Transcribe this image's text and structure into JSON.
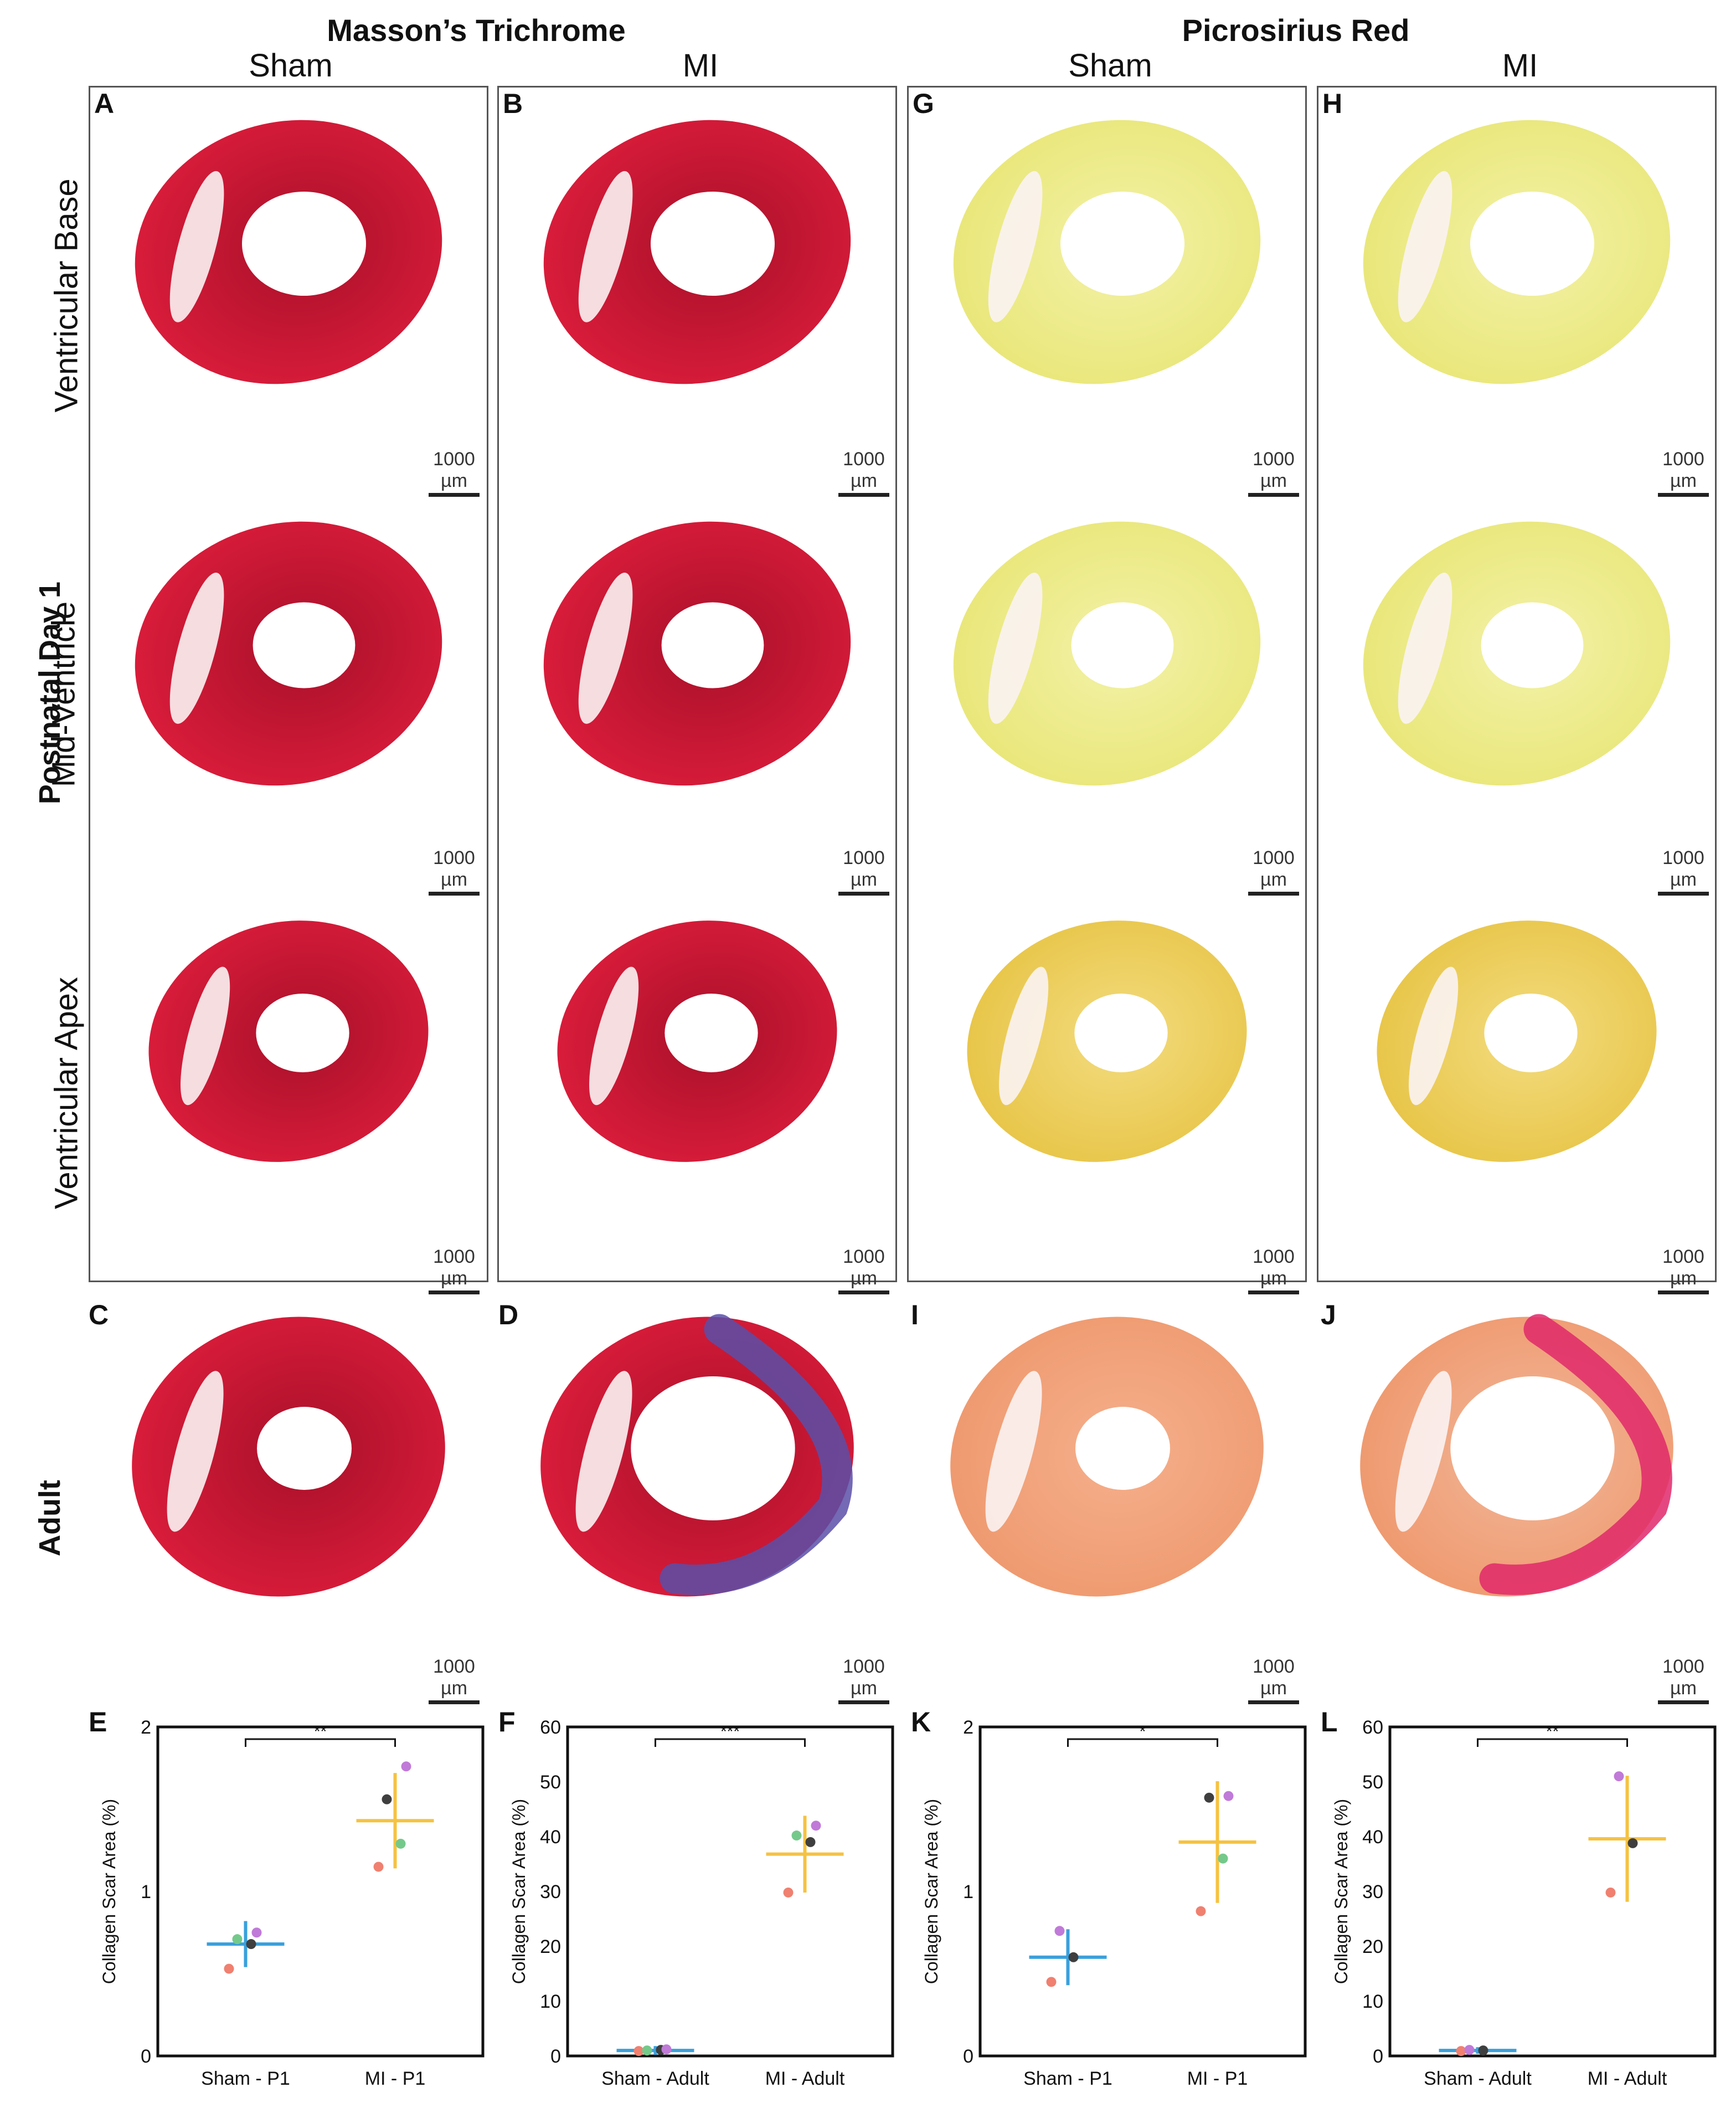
{
  "headers": {
    "masson": "Masson’s Trichrome",
    "picro": "Picrosirius Red",
    "col_sham_1": "Sham",
    "col_mi_1": "MI",
    "col_sham_2": "Sham",
    "col_mi_2": "MI"
  },
  "row_labels": {
    "base": "Ventricular Base",
    "mid": "Mid-Ventricle",
    "apex": "Ventricular Apex",
    "p1": "Postnatal Day 1",
    "adult": "Adult"
  },
  "panel_letters": {
    "A": "A",
    "B": "B",
    "G": "G",
    "H": "H",
    "C": "C",
    "D": "D",
    "I": "I",
    "J": "J",
    "E": "E",
    "F": "F",
    "K": "K",
    "L": "L"
  },
  "scale_label": "1000 µm",
  "stain_colors": {
    "masson": "#d81c3a",
    "masson_dark": "#a8102a",
    "masson_fibrosis": "#5b4fa8",
    "picro_p1": "#e9e77a",
    "picro_p1_apex": "#e8c64a",
    "picro_adult": "#ef9a70",
    "picro_adult_mi_scar": "#e0286a"
  },
  "chart_data": [
    {
      "id": "E",
      "type": "scatter",
      "ylabel": "Collagen Scar Area (%)",
      "ylim": [
        0,
        2
      ],
      "yticks": [
        "0",
        "1",
        "2"
      ],
      "ytick_values": [
        0,
        1,
        2
      ],
      "categories": [
        "Sham - P1",
        "MI - P1"
      ],
      "groups": [
        {
          "name": "Sham - P1",
          "mean": 0.68,
          "sd": 0.14,
          "color": "#3aa0dc",
          "points": [
            {
              "v": 0.53,
              "c": "#f08070"
            },
            {
              "v": 0.68,
              "c": "#3f3f3f"
            },
            {
              "v": 0.71,
              "c": "#74c98a"
            },
            {
              "v": 0.75,
              "c": "#c07ad8"
            }
          ]
        },
        {
          "name": "MI - P1",
          "mean": 1.43,
          "sd": 0.29,
          "color": "#f5c242",
          "points": [
            {
              "v": 1.15,
              "c": "#f08070"
            },
            {
              "v": 1.29,
              "c": "#74c98a"
            },
            {
              "v": 1.56,
              "c": "#3f3f3f"
            },
            {
              "v": 1.76,
              "c": "#c07ad8"
            }
          ]
        }
      ],
      "significance": "**"
    },
    {
      "id": "F",
      "type": "scatter",
      "ylabel": "Collagen Scar Area (%)",
      "ylim": [
        0,
        60
      ],
      "yticks": [
        "0",
        "10",
        "20",
        "30",
        "40",
        "50",
        "60"
      ],
      "ytick_values": [
        0,
        10,
        20,
        30,
        40,
        50,
        60
      ],
      "categories": [
        "Sham - Adult",
        "MI - Adult"
      ],
      "groups": [
        {
          "name": "Sham - Adult",
          "mean": 1.0,
          "sd": 0.8,
          "color": "#3aa0dc",
          "points": [
            {
              "v": 0.9,
              "c": "#f08070"
            },
            {
              "v": 1.1,
              "c": "#3f3f3f"
            },
            {
              "v": 1.0,
              "c": "#74c98a"
            },
            {
              "v": 1.2,
              "c": "#c07ad8"
            }
          ]
        },
        {
          "name": "MI - Adult",
          "mean": 36.8,
          "sd": 7.0,
          "color": "#f5c242",
          "points": [
            {
              "v": 29.8,
              "c": "#f08070"
            },
            {
              "v": 39.0,
              "c": "#3f3f3f"
            },
            {
              "v": 40.2,
              "c": "#74c98a"
            },
            {
              "v": 42.0,
              "c": "#c07ad8"
            }
          ]
        }
      ],
      "significance": "***"
    },
    {
      "id": "K",
      "type": "scatter",
      "ylabel": "Collagen Scar Area (%)",
      "ylim": [
        0,
        2
      ],
      "yticks": [
        "0",
        "1",
        "2"
      ],
      "ytick_values": [
        0,
        1,
        2
      ],
      "categories": [
        "Sham - P1",
        "MI - P1"
      ],
      "groups": [
        {
          "name": "Sham - P1",
          "mean": 0.6,
          "sd": 0.17,
          "color": "#3aa0dc",
          "points": [
            {
              "v": 0.45,
              "c": "#f08070"
            },
            {
              "v": 0.6,
              "c": "#3f3f3f"
            },
            {
              "v": 0.76,
              "c": "#c07ad8"
            }
          ]
        },
        {
          "name": "MI - P1",
          "mean": 1.3,
          "sd": 0.37,
          "color": "#f5c242",
          "points": [
            {
              "v": 0.88,
              "c": "#f08070"
            },
            {
              "v": 1.2,
              "c": "#74c98a"
            },
            {
              "v": 1.57,
              "c": "#3f3f3f"
            },
            {
              "v": 1.58,
              "c": "#c07ad8"
            }
          ]
        }
      ],
      "significance": "*"
    },
    {
      "id": "L",
      "type": "scatter",
      "ylabel": "Collagen Scar Area (%)",
      "ylim": [
        0,
        60
      ],
      "yticks": [
        "0",
        "10",
        "20",
        "30",
        "40",
        "50",
        "60"
      ],
      "ytick_values": [
        0,
        10,
        20,
        30,
        40,
        50,
        60
      ],
      "categories": [
        "Sham - Adult",
        "MI - Adult"
      ],
      "groups": [
        {
          "name": "Sham - Adult",
          "mean": 1.0,
          "sd": 0.6,
          "color": "#3aa0dc",
          "points": [
            {
              "v": 0.9,
              "c": "#f08070"
            },
            {
              "v": 1.0,
              "c": "#3f3f3f"
            },
            {
              "v": 1.1,
              "c": "#c07ad8"
            }
          ]
        },
        {
          "name": "MI - Adult",
          "mean": 39.6,
          "sd": 11.5,
          "color": "#f5c242",
          "points": [
            {
              "v": 29.8,
              "c": "#f08070"
            },
            {
              "v": 38.8,
              "c": "#3f3f3f"
            },
            {
              "v": 51.0,
              "c": "#c07ad8"
            }
          ]
        }
      ],
      "significance": "**"
    }
  ]
}
